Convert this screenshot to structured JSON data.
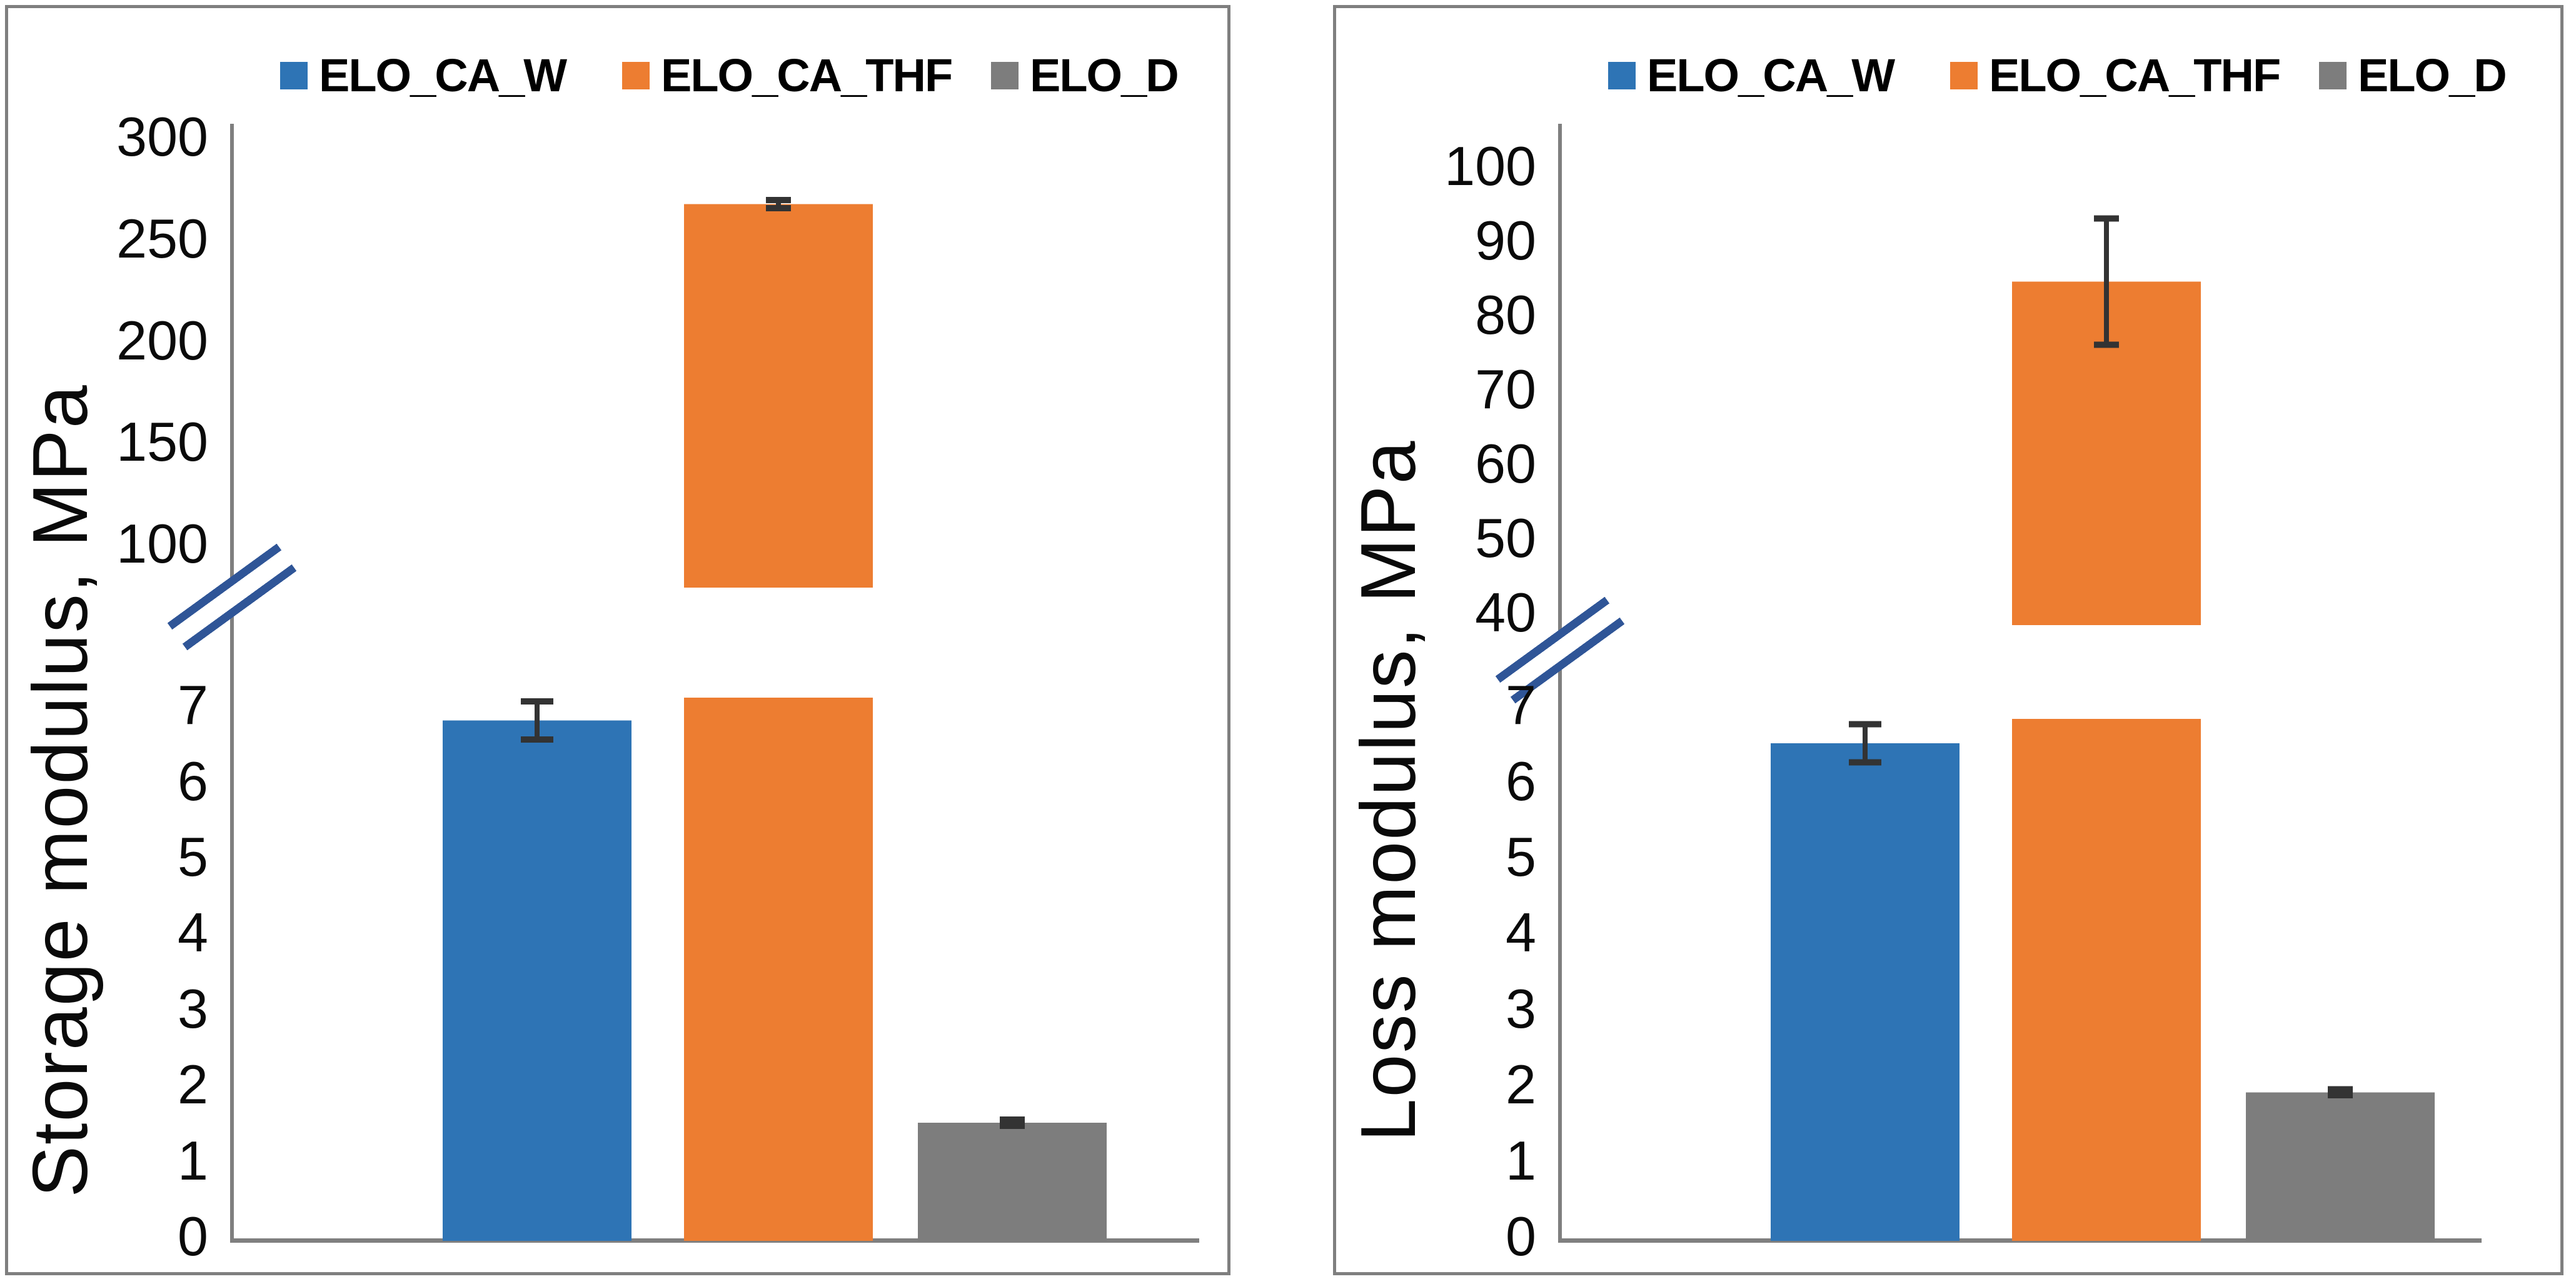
{
  "style": {
    "background": "#FFFFFF",
    "axis_color": "#7F7F7F",
    "panel_border_color": "#7F7F7F",
    "error_bar_color": "#333333",
    "break_mark_color": "#2F5597",
    "text_color": "#0A0A0A"
  },
  "legend": {
    "position": "top",
    "series": [
      {
        "name": "ELO_CA_W",
        "color": "#2E74B5"
      },
      {
        "name": "ELO_CA_THF",
        "color": "#ED7D31"
      },
      {
        "name": "ELO_D",
        "color": "#7D7D7D"
      }
    ]
  },
  "chart_data": [
    {
      "type": "bar",
      "title": "",
      "xlabel": "",
      "ylabel": "Storage modulus, MPa",
      "grid": false,
      "legend_position": "top",
      "axis_break": true,
      "categories": [
        "ELO_CA_W",
        "ELO_CA_THF",
        "ELO_D"
      ],
      "values": [
        6.8,
        267,
        1.5
      ],
      "errors": [
        0.25,
        2,
        0.04
      ],
      "lower_axis": {
        "range": [
          0,
          7.1
        ],
        "ticks": [
          0,
          1,
          2,
          3,
          4,
          5,
          6,
          7
        ]
      },
      "upper_axis": {
        "range": [
          78,
          305
        ],
        "ticks": [
          100,
          150,
          200,
          250,
          300
        ]
      }
    },
    {
      "type": "bar",
      "title": "",
      "xlabel": "",
      "ylabel": "Loss modulus, MPa",
      "grid": false,
      "legend_position": "top",
      "axis_break": true,
      "categories": [
        "ELO_CA_W",
        "ELO_CA_THF",
        "ELO_D"
      ],
      "values": [
        6.5,
        84.5,
        1.9
      ],
      "errors": [
        0.25,
        8.5,
        0.04
      ],
      "lower_axis": {
        "range": [
          0,
          7.1
        ],
        "ticks": [
          0,
          1,
          2,
          3,
          4,
          5,
          6,
          7
        ]
      },
      "upper_axis": {
        "range": [
          39,
          105
        ],
        "ticks": [
          40,
          50,
          60,
          70,
          80,
          90,
          100
        ]
      }
    }
  ]
}
